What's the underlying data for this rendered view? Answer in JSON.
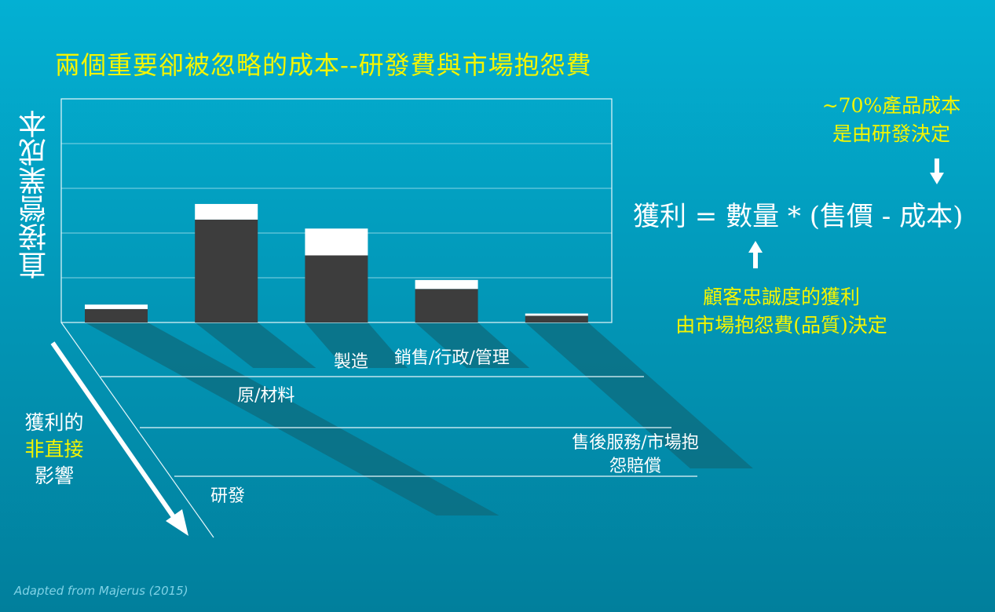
{
  "title": "兩個重要卻被忽略的成本--研發費與市場抱怨費",
  "y_axis_label": "直接營業成本",
  "note_top": [
    "~70%產品成本",
    "是由研發決定"
  ],
  "formula": "獲利 = 數量 * (售價 - 成本)",
  "note_bottom": [
    "顧客忠誠度的獲利",
    "由市場抱怨費(品質)決定"
  ],
  "indirect_label": {
    "line1": "獲利的",
    "line2": "非直接",
    "line3": "影響"
  },
  "credit": "Adapted from Majerus (2015)",
  "colors": {
    "accent_yellow": "#f5f500",
    "bar_dark": "#3d3d3d",
    "bar_top": "#ffffff",
    "shadow": "#0d6b7e"
  },
  "icons": {
    "down_arrow": "down-arrow-icon",
    "up_arrow": "up-arrow-icon",
    "diagonal_arrow": "diagonal-arrow-icon"
  },
  "chart_data": {
    "type": "bar",
    "categories": [
      "研發",
      "原/材料",
      "製造",
      "銷售/行政/管理",
      "售後服務/市場抱怨賠償"
    ],
    "series": [
      {
        "values": [
          3,
          23,
          15,
          7.5,
          1.5
        ]
      },
      {
        "values": [
          1,
          3.5,
          6,
          2,
          0.5
        ]
      }
    ],
    "stacked": true,
    "ylabel": "直接營業成本",
    "ylim": [
      0,
      50
    ],
    "grid": true
  }
}
